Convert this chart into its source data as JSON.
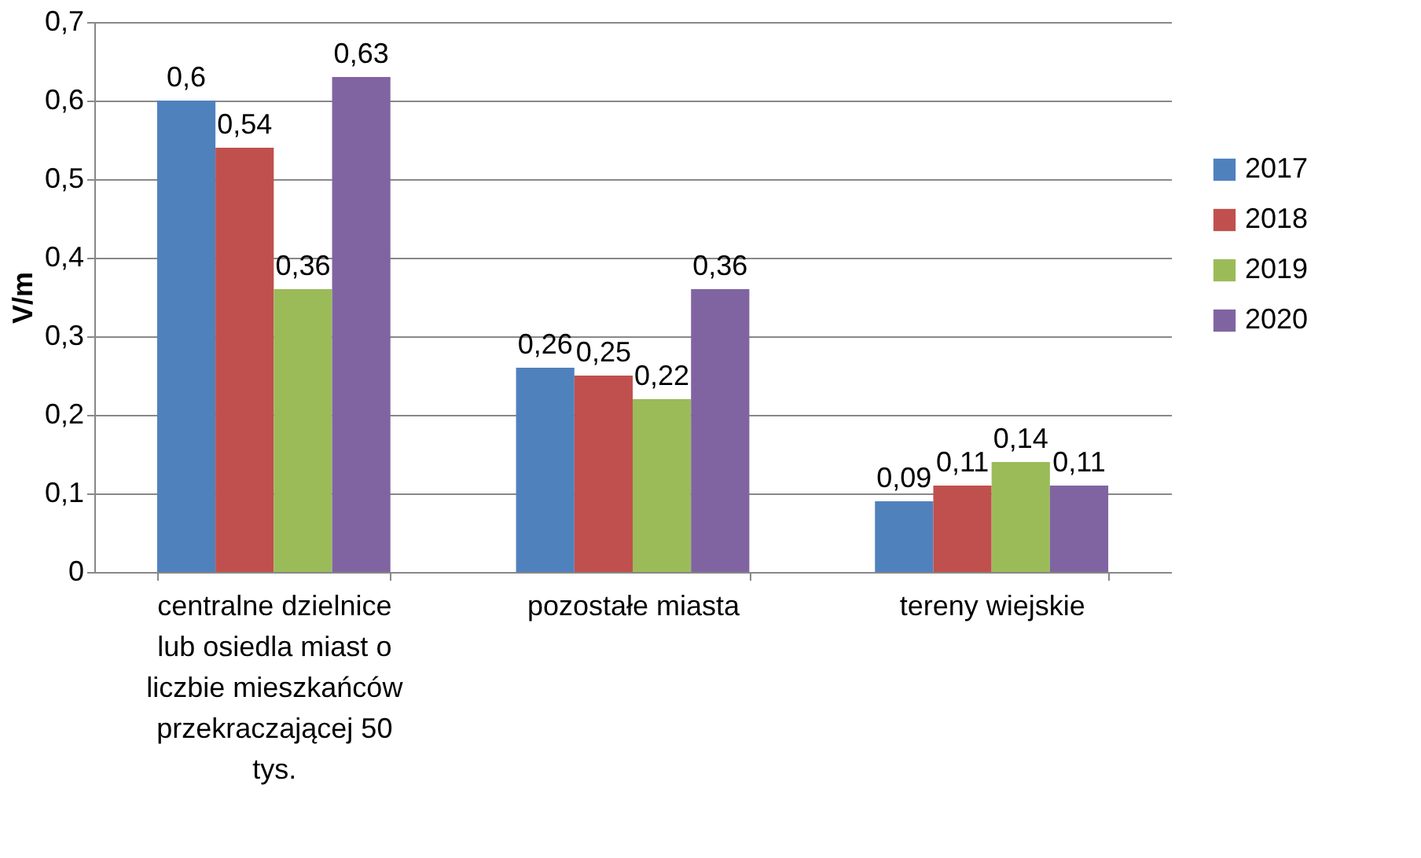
{
  "chart_data": {
    "type": "bar",
    "ylabel": "V/m",
    "categories": [
      "centralne dzielnice lub osiedla miast o liczbie mieszkańców przekraczającej 50 tys.",
      "pozostałe miasta",
      "tereny wiejskie"
    ],
    "series": [
      {
        "name": "2017",
        "color": "#4f81bd",
        "values": [
          0.6,
          0.26,
          0.09
        ],
        "value_labels": [
          "0,6",
          "0,26",
          "0,09"
        ]
      },
      {
        "name": "2018",
        "color": "#c0504d",
        "values": [
          0.54,
          0.25,
          0.11
        ],
        "value_labels": [
          "0,54",
          "0,25",
          "0,11"
        ]
      },
      {
        "name": "2019",
        "color": "#9bbb59",
        "values": [
          0.36,
          0.22,
          0.14
        ],
        "value_labels": [
          "0,36",
          "0,22",
          "0,14"
        ]
      },
      {
        "name": "2020",
        "color": "#8064a2",
        "values": [
          0.63,
          0.36,
          0.11
        ],
        "value_labels": [
          "0,63",
          "0,36",
          "0,11"
        ]
      }
    ],
    "ylim": [
      0,
      0.7
    ],
    "yticks": [
      0,
      {
        "value": 0.1,
        "label": "0,1"
      },
      {
        "value": 0.2,
        "label": "0,2"
      },
      {
        "value": 0.3,
        "label": "0,3"
      },
      {
        "value": 0.4,
        "label": "0,4"
      },
      {
        "value": 0.5,
        "label": "0,5"
      },
      {
        "value": 0.6,
        "label": "0,6"
      },
      {
        "value": 0.7,
        "label": "0,7"
      }
    ],
    "grid": "y",
    "legend": "right"
  }
}
